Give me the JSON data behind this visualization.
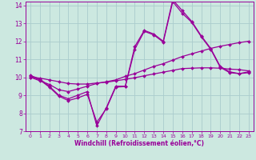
{
  "xlabel": "Windchill (Refroidissement éolien,°C)",
  "bg_color": "#cce8e0",
  "line_color": "#990099",
  "grid_color": "#aacccc",
  "xlim": [
    -0.5,
    23.5
  ],
  "ylim": [
    7,
    14.2
  ],
  "yticks": [
    7,
    8,
    9,
    10,
    11,
    12,
    13,
    14
  ],
  "xticks": [
    0,
    1,
    2,
    3,
    4,
    5,
    6,
    7,
    8,
    9,
    10,
    11,
    12,
    13,
    14,
    15,
    16,
    17,
    18,
    19,
    20,
    21,
    22,
    23
  ],
  "series": [
    [
      10.1,
      9.9,
      9.5,
      9.0,
      8.8,
      9.0,
      9.2,
      7.3,
      8.3,
      9.5,
      9.5,
      11.7,
      12.6,
      12.4,
      12.0,
      14.3,
      13.7,
      13.1,
      12.3,
      11.6,
      10.6,
      10.3,
      10.2,
      10.3
    ],
    [
      10.05,
      9.85,
      9.45,
      8.95,
      8.7,
      8.85,
      9.05,
      7.5,
      8.25,
      9.45,
      9.48,
      11.55,
      12.55,
      12.35,
      11.95,
      14.2,
      13.55,
      13.05,
      12.25,
      11.55,
      10.55,
      10.25,
      10.2,
      10.25
    ],
    [
      10.0,
      9.8,
      9.6,
      9.3,
      9.2,
      9.35,
      9.5,
      9.65,
      9.75,
      9.85,
      10.05,
      10.2,
      10.4,
      10.6,
      10.75,
      10.95,
      11.15,
      11.3,
      11.45,
      11.6,
      11.72,
      11.82,
      11.92,
      12.0
    ],
    [
      10.0,
      9.95,
      9.85,
      9.75,
      9.65,
      9.62,
      9.62,
      9.68,
      9.72,
      9.8,
      9.88,
      9.97,
      10.08,
      10.18,
      10.28,
      10.38,
      10.48,
      10.5,
      10.52,
      10.52,
      10.5,
      10.45,
      10.42,
      10.35
    ]
  ]
}
